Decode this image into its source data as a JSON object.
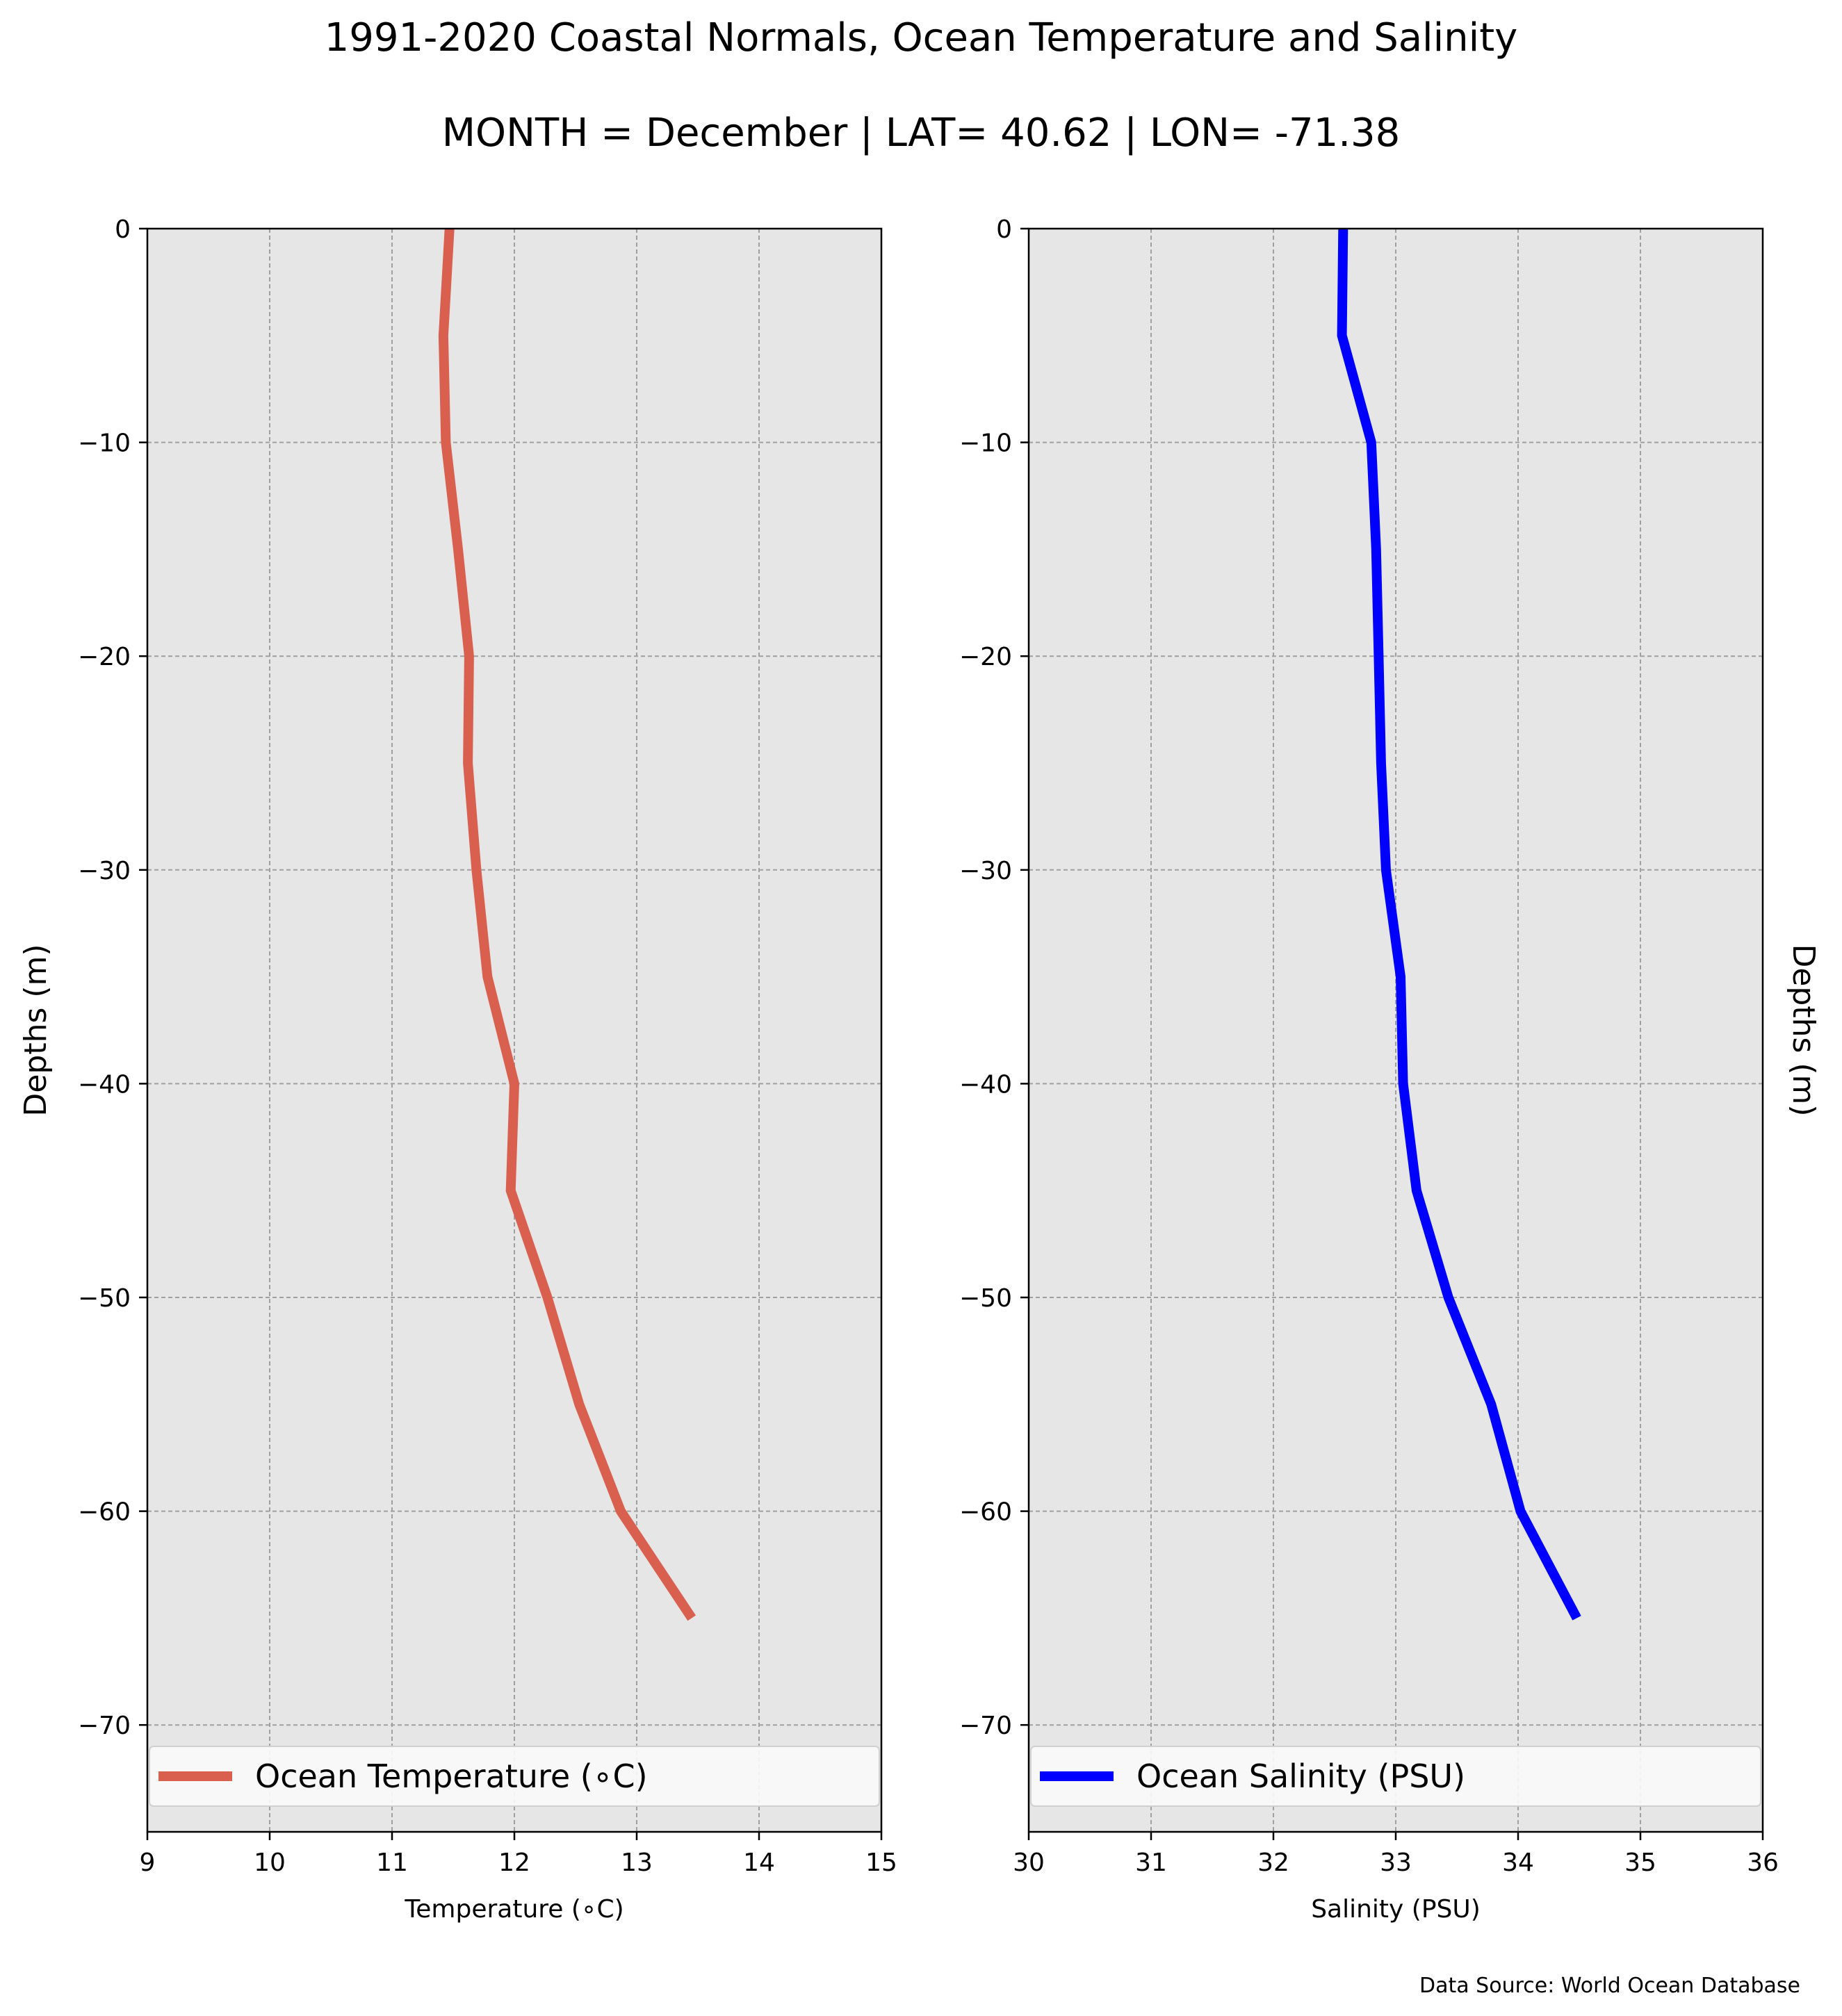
{
  "title": "1991-2020 Coastal Normals, Ocean Temperature and Salinity",
  "subtitle": "MONTH = December | LAT= 40.62 | LON= -71.38",
  "source": "Data Source: World Ocean Database",
  "colors": {
    "temperature": "#d9604e",
    "salinity": "#0000ff",
    "panel_background": "#e6e6e6",
    "grid": "#a0a0a0"
  },
  "chart_data": [
    {
      "type": "line",
      "xlabel": "Temperature ($^\\circ$C)",
      "xlabel_display": "Temperature (∘C)",
      "ylabel": "Depths (m)",
      "xlim": [
        9,
        15
      ],
      "ylim": [
        -75,
        0
      ],
      "xticks": [
        "9",
        "10",
        "11",
        "12",
        "13",
        "14",
        "15"
      ],
      "yticks": [
        "0",
        "−10",
        "−20",
        "−30",
        "−40",
        "−50",
        "−60",
        "−70"
      ],
      "grid": true,
      "legend_position": "lower center",
      "series": [
        {
          "name": "Ocean Temperature (∘C)",
          "x": [
            11.47,
            11.42,
            11.44,
            11.54,
            11.63,
            11.62,
            11.69,
            11.78,
            12.0,
            11.97,
            12.27,
            12.53,
            12.87,
            13.45
          ],
          "y": [
            0,
            -5,
            -10,
            -15,
            -20,
            -25,
            -30,
            -35,
            -40,
            -45,
            -50,
            -55,
            -60,
            -65
          ]
        }
      ]
    },
    {
      "type": "line",
      "xlabel": "Salinity (PSU)",
      "ylabel": "Depths (m)",
      "xlim": [
        30,
        36
      ],
      "ylim": [
        -75,
        0
      ],
      "xticks": [
        "30",
        "31",
        "32",
        "33",
        "34",
        "35",
        "36"
      ],
      "yticks": [
        "0",
        "−10",
        "−20",
        "−30",
        "−40",
        "−50",
        "−60",
        "−70"
      ],
      "grid": true,
      "legend_position": "lower center",
      "series": [
        {
          "name": "Ocean Salinity (PSU)",
          "x": [
            32.57,
            32.56,
            32.8,
            32.84,
            32.86,
            32.88,
            32.92,
            33.04,
            33.06,
            33.17,
            33.43,
            33.78,
            34.02,
            34.48
          ],
          "y": [
            0,
            -5,
            -10,
            -15,
            -20,
            -25,
            -30,
            -35,
            -40,
            -45,
            -50,
            -55,
            -60,
            -65
          ]
        }
      ]
    }
  ]
}
